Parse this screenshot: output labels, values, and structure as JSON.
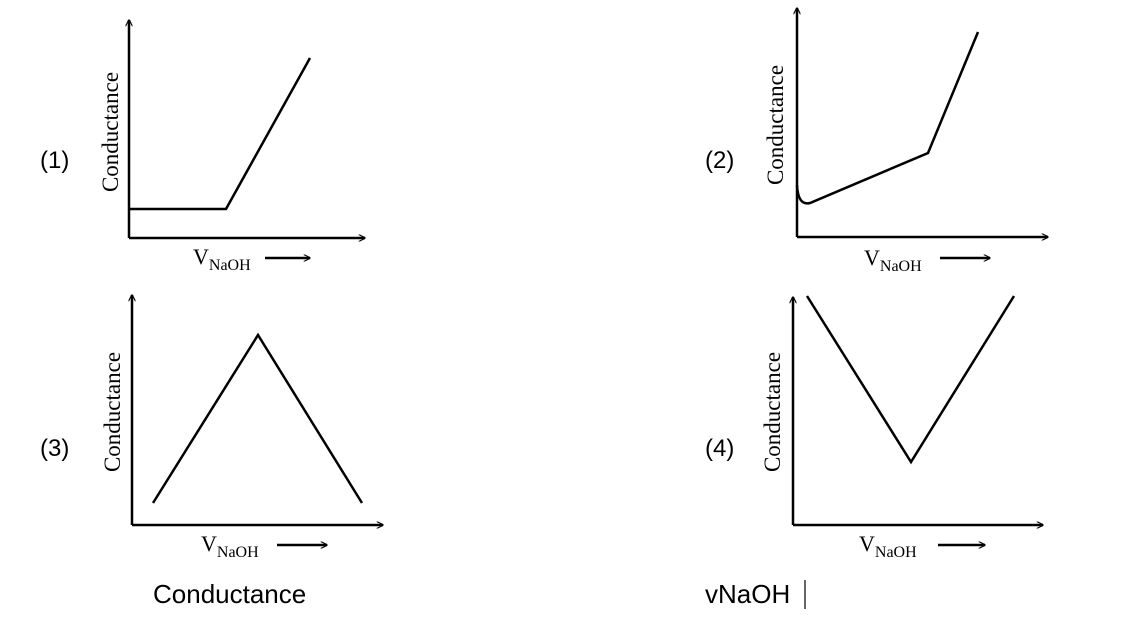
{
  "panels": [
    {
      "label": "(1)",
      "y_label": "Conductance",
      "x_label": {
        "main": "V",
        "sub": "NaOH"
      }
    },
    {
      "label": "(2)",
      "y_label": "Conductance",
      "x_label": {
        "main": "V",
        "sub": "NaOH"
      }
    },
    {
      "label": "(3)",
      "y_label": "Conductance",
      "x_label": {
        "main": "V",
        "sub": "NaOH"
      }
    },
    {
      "label": "(4)",
      "y_label": "Conductance",
      "x_label": {
        "main": "V",
        "sub": "NaOH"
      }
    }
  ],
  "footer": [
    "Conductance",
    "vNaOH"
  ]
}
